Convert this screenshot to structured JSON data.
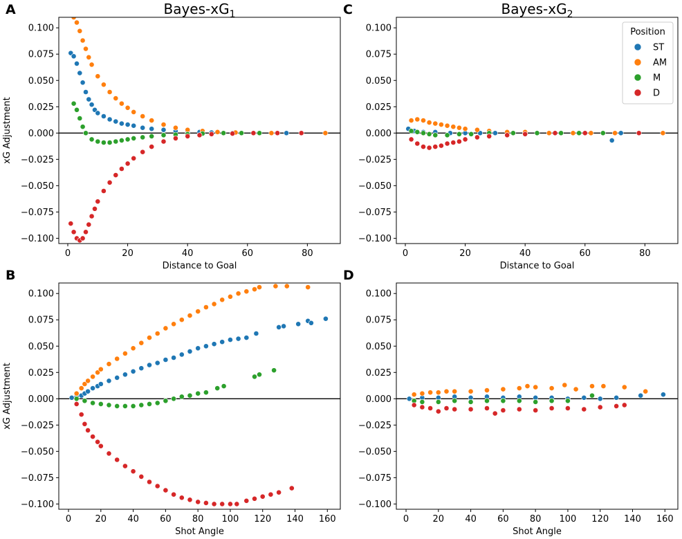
{
  "figure": {
    "legend": {
      "title": "Position",
      "placement": "top-right of panel C"
    }
  },
  "colors": {
    "ST": "#1f77b4",
    "AM": "#ff7f0e",
    "M": "#2ca02c",
    "D": "#d62728",
    "zero_line": "#000000"
  },
  "chart_data": [
    {
      "id": "A",
      "panel_letter": "A",
      "type": "scatter",
      "title_main": "Bayes-xG",
      "title_sub": "1",
      "xlabel": "Distance to Goal",
      "ylabel": "xG Adjustment",
      "xlim": [
        -3,
        91
      ],
      "ylim": [
        -0.105,
        0.11
      ],
      "xticks": [
        0,
        20,
        40,
        60,
        80
      ],
      "xtick_labels": [
        "0",
        "20",
        "40",
        "60",
        "80"
      ],
      "yticks": [
        0.1,
        0.075,
        0.05,
        0.025,
        0.0,
        -0.025,
        -0.05,
        -0.075,
        -0.1
      ],
      "ytick_labels": [
        "0.100",
        "0.075",
        "0.050",
        "0.025",
        "0.000",
        "−0.025",
        "−0.050",
        "−0.075",
        "−0.100"
      ],
      "series": [
        {
          "name": "ST",
          "x": [
            1,
            2,
            3,
            4,
            5,
            6,
            7,
            8,
            9,
            10,
            12,
            14,
            16,
            18,
            20,
            22,
            25,
            28,
            32,
            36,
            40,
            44,
            48,
            55,
            62,
            68,
            73
          ],
          "y": [
            0.076,
            0.073,
            0.066,
            0.057,
            0.048,
            0.039,
            0.032,
            0.027,
            0.022,
            0.019,
            0.016,
            0.013,
            0.011,
            0.009,
            0.008,
            0.007,
            0.005,
            0.004,
            0.003,
            0.002,
            0.001,
            0.001,
            0.0005,
            0.0,
            0.0,
            0.0,
            0.0
          ]
        },
        {
          "name": "AM",
          "x": [
            2,
            3,
            4,
            5,
            6,
            7,
            8,
            10,
            12,
            14,
            16,
            18,
            20,
            22,
            25,
            28,
            32,
            36,
            40,
            45,
            50,
            56,
            62,
            68,
            78,
            86
          ],
          "y": [
            0.11,
            0.105,
            0.097,
            0.088,
            0.08,
            0.072,
            0.065,
            0.054,
            0.046,
            0.039,
            0.033,
            0.028,
            0.024,
            0.02,
            0.016,
            0.012,
            0.008,
            0.005,
            0.003,
            0.002,
            0.001,
            0.0005,
            0.0,
            0.0,
            0.0,
            0.0
          ]
        },
        {
          "name": "M",
          "x": [
            2,
            3,
            4,
            5,
            6,
            8,
            10,
            12,
            14,
            16,
            18,
            20,
            22,
            25,
            28,
            32,
            36,
            40,
            45,
            52,
            58,
            64,
            70
          ],
          "y": [
            0.028,
            0.022,
            0.014,
            0.006,
            0.0,
            -0.006,
            -0.008,
            -0.009,
            -0.009,
            -0.008,
            -0.007,
            -0.006,
            -0.005,
            -0.004,
            -0.003,
            -0.002,
            -0.0015,
            -0.001,
            -0.0005,
            0.0,
            0.0,
            0.0,
            0.0
          ]
        },
        {
          "name": "D",
          "x": [
            1,
            2,
            3,
            4,
            5,
            6,
            7,
            8,
            9,
            10,
            12,
            14,
            16,
            18,
            20,
            22,
            25,
            28,
            32,
            36,
            40,
            44,
            48,
            55,
            62,
            70,
            78
          ],
          "y": [
            -0.086,
            -0.094,
            -0.1,
            -0.102,
            -0.1,
            -0.094,
            -0.087,
            -0.079,
            -0.072,
            -0.065,
            -0.055,
            -0.047,
            -0.04,
            -0.034,
            -0.029,
            -0.024,
            -0.018,
            -0.013,
            -0.008,
            -0.005,
            -0.003,
            -0.002,
            -0.001,
            -0.0005,
            0.0,
            0.0,
            0.0
          ]
        }
      ]
    },
    {
      "id": "C",
      "panel_letter": "C",
      "type": "scatter",
      "title_main": "Bayes-xG",
      "title_sub": "2",
      "xlabel": "Distance to Goal",
      "ylabel": "",
      "xlim": [
        -3,
        91
      ],
      "ylim": [
        -0.105,
        0.11
      ],
      "xticks": [
        0,
        20,
        40,
        60,
        80
      ],
      "xtick_labels": [
        "0",
        "20",
        "40",
        "60",
        "80"
      ],
      "yticks": [
        0.1,
        0.075,
        0.05,
        0.025,
        0.0,
        -0.025,
        -0.05,
        -0.075,
        -0.1
      ],
      "ytick_labels": [
        "0.100",
        "0.075",
        "0.050",
        "0.025",
        "0.000",
        "−0.025",
        "−0.050",
        "−0.075",
        "−0.100"
      ],
      "series": [
        {
          "name": "ST",
          "x": [
            1,
            3,
            6,
            10,
            15,
            20,
            25,
            30,
            40,
            50,
            60,
            69,
            72
          ],
          "y": [
            0.004,
            0.002,
            0.001,
            0.001,
            0.0,
            0.0,
            0.0,
            0.0,
            0.0,
            0.0,
            0.0,
            -0.007,
            0.0
          ]
        },
        {
          "name": "AM",
          "x": [
            2,
            4,
            6,
            8,
            10,
            12,
            14,
            16,
            18,
            20,
            24,
            28,
            34,
            40,
            48,
            56,
            62,
            70,
            86
          ],
          "y": [
            0.012,
            0.013,
            0.012,
            0.01,
            0.009,
            0.008,
            0.007,
            0.006,
            0.005,
            0.004,
            0.003,
            0.002,
            0.001,
            0.001,
            0.0,
            0.0,
            0.0,
            0.0,
            0.0
          ]
        },
        {
          "name": "M",
          "x": [
            2,
            4,
            6,
            8,
            10,
            14,
            18,
            22,
            28,
            36,
            44,
            52,
            58,
            66
          ],
          "y": [
            0.002,
            0.001,
            0.0,
            -0.001,
            -0.002,
            -0.002,
            -0.001,
            -0.001,
            0.0,
            0.0,
            0.0,
            0.0,
            0.0,
            0.0
          ]
        },
        {
          "name": "D",
          "x": [
            2,
            4,
            6,
            8,
            10,
            12,
            14,
            16,
            18,
            20,
            24,
            28,
            34,
            40,
            50,
            60,
            78
          ],
          "y": [
            -0.006,
            -0.01,
            -0.013,
            -0.014,
            -0.013,
            -0.012,
            -0.01,
            -0.009,
            -0.008,
            -0.006,
            -0.004,
            -0.003,
            -0.002,
            -0.001,
            0.0,
            0.0,
            0.0
          ]
        }
      ]
    },
    {
      "id": "B",
      "panel_letter": "B",
      "type": "scatter",
      "title_main": "",
      "title_sub": "",
      "xlabel": "Shot Angle",
      "ylabel": "xG Adjustment",
      "xlim": [
        -6,
        168
      ],
      "ylim": [
        -0.105,
        0.11
      ],
      "xticks": [
        0,
        20,
        40,
        60,
        80,
        100,
        120,
        140,
        160
      ],
      "xtick_labels": [
        "0",
        "20",
        "40",
        "60",
        "80",
        "100",
        "120",
        "140",
        "160"
      ],
      "yticks": [
        0.1,
        0.075,
        0.05,
        0.025,
        0.0,
        -0.025,
        -0.05,
        -0.075,
        -0.1
      ],
      "ytick_labels": [
        "0.100",
        "0.075",
        "0.050",
        "0.025",
        "0.000",
        "−0.025",
        "−0.050",
        "−0.075",
        "−0.100"
      ],
      "series": [
        {
          "name": "ST",
          "x": [
            2,
            5,
            8,
            10,
            12,
            15,
            18,
            20,
            25,
            30,
            35,
            40,
            45,
            50,
            55,
            60,
            65,
            70,
            75,
            80,
            85,
            90,
            95,
            100,
            105,
            110,
            116,
            130,
            133,
            142,
            148,
            150,
            159
          ],
          "y": [
            0.001,
            0.002,
            0.003,
            0.005,
            0.007,
            0.01,
            0.012,
            0.014,
            0.017,
            0.02,
            0.023,
            0.026,
            0.029,
            0.032,
            0.034,
            0.037,
            0.039,
            0.042,
            0.045,
            0.048,
            0.05,
            0.052,
            0.054,
            0.056,
            0.057,
            0.058,
            0.062,
            0.068,
            0.069,
            0.071,
            0.074,
            0.072,
            0.076
          ]
        },
        {
          "name": "AM",
          "x": [
            5,
            8,
            10,
            12,
            15,
            18,
            20,
            25,
            30,
            35,
            40,
            45,
            50,
            55,
            60,
            65,
            70,
            75,
            80,
            85,
            90,
            95,
            100,
            105,
            110,
            115,
            118,
            128,
            135,
            148
          ],
          "y": [
            0.005,
            0.01,
            0.014,
            0.017,
            0.021,
            0.025,
            0.028,
            0.033,
            0.038,
            0.043,
            0.048,
            0.053,
            0.058,
            0.062,
            0.067,
            0.071,
            0.075,
            0.079,
            0.083,
            0.087,
            0.09,
            0.094,
            0.097,
            0.1,
            0.102,
            0.104,
            0.106,
            0.107,
            0.107,
            0.106
          ]
        },
        {
          "name": "M",
          "x": [
            5,
            10,
            15,
            20,
            25,
            30,
            35,
            40,
            45,
            50,
            55,
            60,
            65,
            70,
            75,
            80,
            85,
            92,
            96,
            115,
            118,
            127
          ],
          "y": [
            0.0,
            -0.002,
            -0.004,
            -0.005,
            -0.006,
            -0.007,
            -0.007,
            -0.007,
            -0.006,
            -0.005,
            -0.004,
            -0.002,
            0.0,
            0.002,
            0.003,
            0.005,
            0.006,
            0.01,
            0.012,
            0.021,
            0.023,
            0.027
          ]
        },
        {
          "name": "D",
          "x": [
            5,
            8,
            10,
            12,
            15,
            18,
            20,
            25,
            30,
            35,
            40,
            45,
            50,
            55,
            60,
            65,
            70,
            75,
            80,
            85,
            90,
            95,
            100,
            104,
            110,
            115,
            120,
            125,
            130,
            138
          ],
          "y": [
            -0.005,
            -0.015,
            -0.024,
            -0.03,
            -0.036,
            -0.041,
            -0.045,
            -0.052,
            -0.058,
            -0.064,
            -0.069,
            -0.074,
            -0.079,
            -0.083,
            -0.087,
            -0.091,
            -0.094,
            -0.096,
            -0.098,
            -0.099,
            -0.1,
            -0.1,
            -0.1,
            -0.1,
            -0.097,
            -0.095,
            -0.093,
            -0.091,
            -0.089,
            -0.085
          ]
        }
      ]
    },
    {
      "id": "D",
      "panel_letter": "D",
      "type": "scatter",
      "title_main": "",
      "title_sub": "",
      "xlabel": "Shot Angle",
      "ylabel": "",
      "xlim": [
        -6,
        168
      ],
      "ylim": [
        -0.105,
        0.11
      ],
      "xticks": [
        0,
        20,
        40,
        60,
        80,
        100,
        120,
        140,
        160
      ],
      "xtick_labels": [
        "0",
        "20",
        "40",
        "60",
        "80",
        "100",
        "120",
        "140",
        "160"
      ],
      "yticks": [
        0.1,
        0.075,
        0.05,
        0.025,
        0.0,
        -0.025,
        -0.05,
        -0.075,
        -0.1
      ],
      "ytick_labels": [
        "0.100",
        "0.075",
        "0.050",
        "0.025",
        "0.000",
        "−0.025",
        "−0.050",
        "−0.075",
        "−0.100"
      ],
      "series": [
        {
          "name": "ST",
          "x": [
            2,
            10,
            20,
            30,
            40,
            50,
            60,
            70,
            80,
            90,
            100,
            110,
            120,
            130,
            145,
            159
          ],
          "y": [
            0.0,
            0.001,
            0.001,
            0.002,
            0.001,
            0.002,
            0.001,
            0.002,
            0.001,
            0.001,
            0.0,
            0.001,
            0.0,
            0.001,
            0.003,
            0.004
          ]
        },
        {
          "name": "AM",
          "x": [
            5,
            10,
            15,
            20,
            25,
            30,
            40,
            50,
            60,
            70,
            75,
            80,
            90,
            98,
            105,
            115,
            122,
            135,
            148
          ],
          "y": [
            0.004,
            0.005,
            0.006,
            0.006,
            0.007,
            0.007,
            0.007,
            0.008,
            0.009,
            0.01,
            0.012,
            0.011,
            0.01,
            0.013,
            0.009,
            0.012,
            0.012,
            0.011,
            0.007
          ]
        },
        {
          "name": "M",
          "x": [
            5,
            10,
            20,
            30,
            40,
            50,
            60,
            70,
            80,
            90,
            100,
            115
          ],
          "y": [
            -0.002,
            -0.003,
            -0.003,
            -0.002,
            -0.003,
            -0.002,
            -0.002,
            -0.002,
            -0.003,
            -0.002,
            -0.002,
            0.003
          ]
        },
        {
          "name": "D",
          "x": [
            5,
            10,
            15,
            20,
            25,
            30,
            40,
            50,
            55,
            60,
            70,
            80,
            90,
            100,
            110,
            120,
            130,
            135
          ],
          "y": [
            -0.006,
            -0.008,
            -0.009,
            -0.012,
            -0.009,
            -0.01,
            -0.01,
            -0.009,
            -0.014,
            -0.011,
            -0.01,
            -0.011,
            -0.009,
            -0.009,
            -0.01,
            -0.008,
            -0.007,
            -0.006
          ]
        }
      ]
    }
  ]
}
